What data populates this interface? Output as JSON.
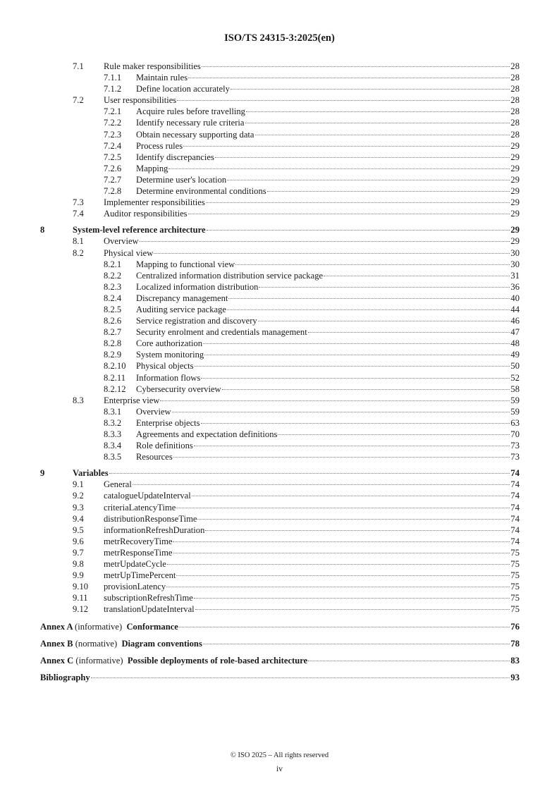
{
  "header": {
    "title": "ISO/TS 24315-3:2025(en)"
  },
  "toc": [
    {
      "level": 1,
      "num": "7.1",
      "title": "Rule maker responsibilities",
      "page": "28"
    },
    {
      "level": 2,
      "num": "7.1.1",
      "title": "Maintain rules",
      "page": "28"
    },
    {
      "level": 2,
      "num": "7.1.2",
      "title": "Define location accurately",
      "page": "28"
    },
    {
      "level": 1,
      "num": "7.2",
      "title": "User responsibilities",
      "page": "28"
    },
    {
      "level": 2,
      "num": "7.2.1",
      "title": "Acquire rules before travelling",
      "page": "28"
    },
    {
      "level": 2,
      "num": "7.2.2",
      "title": "Identify necessary rule criteria",
      "page": "28"
    },
    {
      "level": 2,
      "num": "7.2.3",
      "title": "Obtain necessary supporting data",
      "page": "28"
    },
    {
      "level": 2,
      "num": "7.2.4",
      "title": "Process rules",
      "page": "29"
    },
    {
      "level": 2,
      "num": "7.2.5",
      "title": "Identify discrepancies",
      "page": "29"
    },
    {
      "level": 2,
      "num": "7.2.6",
      "title": "Mapping",
      "page": "29"
    },
    {
      "level": 2,
      "num": "7.2.7",
      "title": "Determine user's location",
      "page": "29"
    },
    {
      "level": 2,
      "num": "7.2.8",
      "title": "Determine environmental conditions",
      "page": "29"
    },
    {
      "level": 1,
      "num": "7.3",
      "title": "Implementer responsibilities",
      "page": "29"
    },
    {
      "level": 1,
      "num": "7.4",
      "title": "Auditor responsibilities",
      "page": "29"
    },
    {
      "level": 0,
      "num": "8",
      "title": "System-level reference architecture",
      "page": "29"
    },
    {
      "level": 1,
      "num": "8.1",
      "title": "Overview",
      "page": "29"
    },
    {
      "level": 1,
      "num": "8.2",
      "title": "Physical view",
      "page": "30"
    },
    {
      "level": 2,
      "num": "8.2.1",
      "title": "Mapping to functional view",
      "page": "30"
    },
    {
      "level": 2,
      "num": "8.2.2",
      "title": "Centralized information distribution service package",
      "page": "31"
    },
    {
      "level": 2,
      "num": "8.2.3",
      "title": "Localized information distribution",
      "page": "36"
    },
    {
      "level": 2,
      "num": "8.2.4",
      "title": "Discrepancy management",
      "page": "40"
    },
    {
      "level": 2,
      "num": "8.2.5",
      "title": "Auditing service package",
      "page": "44"
    },
    {
      "level": 2,
      "num": "8.2.6",
      "title": "Service registration and discovery",
      "page": "46"
    },
    {
      "level": 2,
      "num": "8.2.7",
      "title": "Security enrolment and credentials management",
      "page": "47"
    },
    {
      "level": 2,
      "num": "8.2.8",
      "title": "Core authorization",
      "page": "48"
    },
    {
      "level": 2,
      "num": "8.2.9",
      "title": "System monitoring",
      "page": "49"
    },
    {
      "level": 2,
      "num": "8.2.10",
      "title": "Physical objects",
      "page": "50"
    },
    {
      "level": 2,
      "num": "8.2.11",
      "title": "Information flows",
      "page": "52"
    },
    {
      "level": 2,
      "num": "8.2.12",
      "title": "Cybersecurity overview",
      "page": "58"
    },
    {
      "level": 1,
      "num": "8.3",
      "title": "Enterprise view",
      "page": "59"
    },
    {
      "level": 2,
      "num": "8.3.1",
      "title": "Overview",
      "page": "59"
    },
    {
      "level": 2,
      "num": "8.3.2",
      "title": "Enterprise objects",
      "page": "63"
    },
    {
      "level": 2,
      "num": "8.3.3",
      "title": "Agreements and expectation definitions",
      "page": "70"
    },
    {
      "level": 2,
      "num": "8.3.4",
      "title": "Role definitions",
      "page": "73"
    },
    {
      "level": 2,
      "num": "8.3.5",
      "title": "Resources",
      "page": "73"
    },
    {
      "level": 0,
      "num": "9",
      "title": "Variables",
      "page": "74"
    },
    {
      "level": 1,
      "num": "9.1",
      "title": "General",
      "page": "74"
    },
    {
      "level": 1,
      "num": "9.2",
      "title": "catalogueUpdateInterval",
      "page": "74"
    },
    {
      "level": 1,
      "num": "9.3",
      "title": "criteriaLatencyTime",
      "page": "74"
    },
    {
      "level": 1,
      "num": "9.4",
      "title": "distributionResponseTime",
      "page": "74"
    },
    {
      "level": 1,
      "num": "9.5",
      "title": "informationRefreshDuration",
      "page": "74"
    },
    {
      "level": 1,
      "num": "9.6",
      "title": "metrRecoveryTime",
      "page": "74"
    },
    {
      "level": 1,
      "num": "9.7",
      "title": "metrResponseTime",
      "page": "75"
    },
    {
      "level": 1,
      "num": "9.8",
      "title": "metrUpdateCycle",
      "page": "75"
    },
    {
      "level": 1,
      "num": "9.9",
      "title": "metrUpTimePercent",
      "page": "75"
    },
    {
      "level": 1,
      "num": "9.10",
      "title": "provisionLatency",
      "page": "75"
    },
    {
      "level": 1,
      "num": "9.11",
      "title": "subscriptionRefreshTime",
      "page": "75"
    },
    {
      "level": 1,
      "num": "9.12",
      "title": "translationUpdateInterval",
      "page": "75"
    },
    {
      "level": "annex",
      "num": "Annex A",
      "kind": "(informative)",
      "title": "Conformance",
      "page": "76"
    },
    {
      "level": "annex",
      "num": "Annex B",
      "kind": "(normative)",
      "title": "Diagram conventions",
      "page": "78"
    },
    {
      "level": "annex",
      "num": "Annex C",
      "kind": "(informative)",
      "title": "Possible deployments of role-based architecture",
      "page": "83"
    },
    {
      "level": "annex",
      "num": "",
      "kind": "",
      "title": "Bibliography",
      "page": "93"
    }
  ],
  "footer": {
    "copyright": "© ISO 2025 – All rights reserved",
    "page": "iv"
  }
}
